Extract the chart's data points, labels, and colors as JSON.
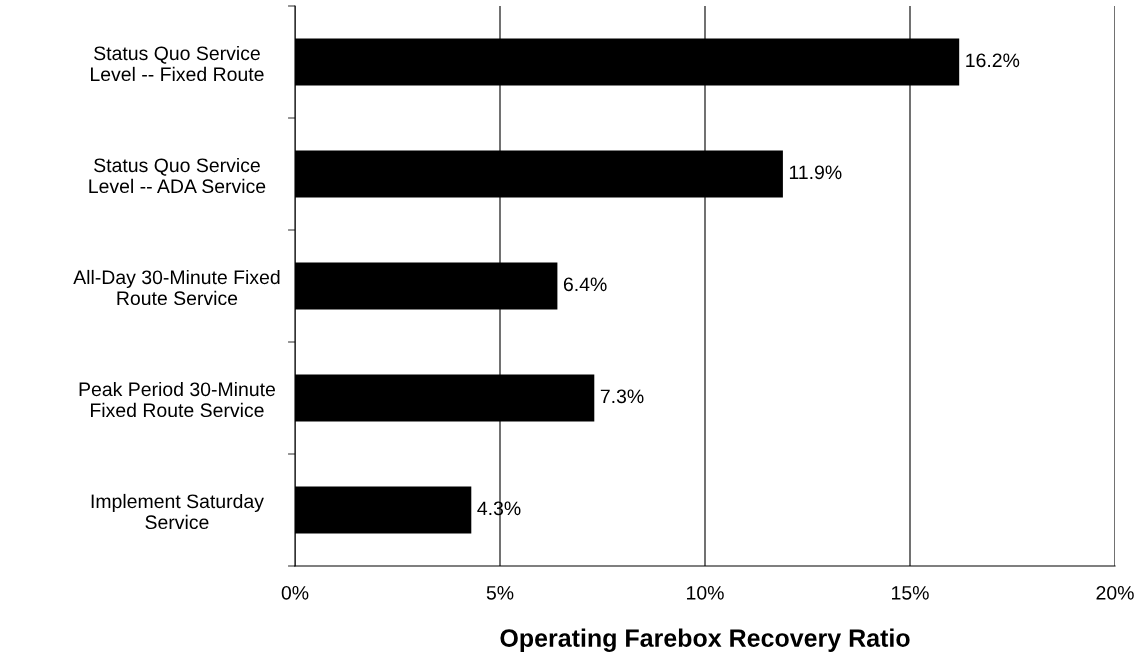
{
  "chart_data": {
    "type": "bar",
    "orientation": "horizontal",
    "xlabel": "Operating Farebox Recovery Ratio",
    "categories": [
      "Status Quo Service\nLevel -- Fixed Route",
      "Status Quo Service\nLevel -- ADA Service",
      "All-Day 30-Minute Fixed\nRoute Service",
      "Peak Period 30-Minute\nFixed Route Service",
      "Implement Saturday\nService"
    ],
    "values": [
      16.2,
      11.9,
      6.4,
      7.3,
      4.3
    ],
    "value_labels": [
      "16.2%",
      "11.9%",
      "6.4%",
      "7.3%",
      "4.3%"
    ],
    "color": "#000000",
    "xlim": [
      0,
      20
    ],
    "xticks": [
      {
        "value": 0,
        "label": "0%"
      },
      {
        "value": 5,
        "label": "5%"
      },
      {
        "value": 10,
        "label": "10%"
      },
      {
        "value": 15,
        "label": "15%"
      },
      {
        "value": 20,
        "label": "20%"
      }
    ],
    "grid": "x"
  }
}
